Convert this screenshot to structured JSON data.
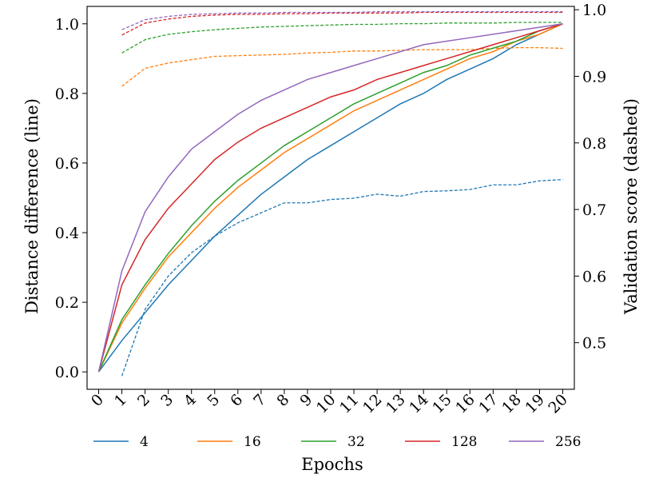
{
  "chart_data": {
    "type": "line",
    "x_label": "Epochs",
    "y_label_left": "Distance difference (line)",
    "y_label_right": "Validation score (dashed)",
    "x": [
      0,
      1,
      2,
      3,
      4,
      5,
      6,
      7,
      8,
      9,
      10,
      11,
      12,
      13,
      14,
      15,
      16,
      17,
      18,
      19,
      20
    ],
    "x_ticks": [
      "0",
      "1",
      "2",
      "3",
      "4",
      "5",
      "6",
      "7",
      "8",
      "9",
      "10",
      "11",
      "12",
      "13",
      "14",
      "15",
      "16",
      "17",
      "18",
      "19",
      "20"
    ],
    "ylim_left": [
      -0.05,
      1.05
    ],
    "yticks_left": [
      "0.0",
      "0.2",
      "0.4",
      "0.6",
      "0.8",
      "1.0"
    ],
    "ylim_right": [
      0.43,
      1.005
    ],
    "yticks_right": [
      "0.5",
      "0.6",
      "0.7",
      "0.8",
      "0.9",
      "1.0"
    ],
    "legend_position": "bottom, below plot",
    "series": [
      {
        "name": "4",
        "color": "#1f77b4",
        "distance": [
          0.0,
          0.09,
          0.17,
          0.25,
          0.32,
          0.39,
          0.45,
          0.51,
          0.56,
          0.61,
          0.65,
          0.69,
          0.73,
          0.77,
          0.8,
          0.84,
          0.87,
          0.9,
          0.94,
          0.97,
          1.0
        ],
        "validation_x": [
          1,
          2,
          3,
          4,
          5,
          6,
          7,
          8,
          9,
          10,
          11,
          12,
          13,
          14,
          15,
          16,
          17,
          18,
          19,
          20
        ],
        "validation": [
          0.45,
          0.55,
          0.6,
          0.635,
          0.66,
          0.68,
          0.695,
          0.71,
          0.71,
          0.715,
          0.717,
          0.723,
          0.72,
          0.727,
          0.728,
          0.73,
          0.737,
          0.737,
          0.743,
          0.745
        ]
      },
      {
        "name": "16",
        "color": "#ff7f0e",
        "distance": [
          0.0,
          0.14,
          0.24,
          0.33,
          0.4,
          0.47,
          0.53,
          0.58,
          0.63,
          0.67,
          0.71,
          0.75,
          0.78,
          0.81,
          0.84,
          0.87,
          0.9,
          0.92,
          0.95,
          0.97,
          1.0
        ],
        "validation_x": [
          1,
          2,
          3,
          4,
          5,
          6,
          7,
          8,
          9,
          10,
          11,
          12,
          13,
          14,
          15,
          16,
          17,
          18,
          19,
          20
        ],
        "validation": [
          0.885,
          0.912,
          0.92,
          0.925,
          0.93,
          0.931,
          0.932,
          0.933,
          0.935,
          0.936,
          0.938,
          0.938,
          0.939,
          0.94,
          0.94,
          0.94,
          0.942,
          0.943,
          0.943,
          0.942
        ]
      },
      {
        "name": "32",
        "color": "#2ca02c",
        "distance": [
          0.0,
          0.15,
          0.25,
          0.34,
          0.42,
          0.49,
          0.55,
          0.6,
          0.65,
          0.69,
          0.73,
          0.77,
          0.8,
          0.83,
          0.86,
          0.88,
          0.91,
          0.93,
          0.95,
          0.98,
          1.0
        ],
        "validation_x": [
          1,
          2,
          3,
          4,
          5,
          6,
          7,
          8,
          9,
          10,
          11,
          12,
          13,
          14,
          15,
          16,
          17,
          18,
          19,
          20
        ],
        "validation": [
          0.935,
          0.955,
          0.963,
          0.967,
          0.97,
          0.972,
          0.974,
          0.975,
          0.976,
          0.977,
          0.978,
          0.978,
          0.979,
          0.979,
          0.98,
          0.98,
          0.98,
          0.981,
          0.981,
          0.981
        ]
      },
      {
        "name": "128",
        "color": "#d62728",
        "distance": [
          0.0,
          0.25,
          0.38,
          0.47,
          0.54,
          0.61,
          0.66,
          0.7,
          0.73,
          0.76,
          0.79,
          0.81,
          0.84,
          0.86,
          0.88,
          0.9,
          0.92,
          0.94,
          0.96,
          0.98,
          1.0
        ],
        "validation_x": [
          1,
          2,
          3,
          4,
          5,
          6,
          7,
          8,
          9,
          10,
          11,
          12,
          13,
          14,
          15,
          16,
          17,
          18,
          19,
          20
        ],
        "validation": [
          0.962,
          0.98,
          0.986,
          0.99,
          0.992,
          0.993,
          0.993,
          0.994,
          0.994,
          0.995,
          0.995,
          0.995,
          0.995,
          0.996,
          0.996,
          0.996,
          0.996,
          0.996,
          0.996,
          0.996
        ]
      },
      {
        "name": "256",
        "color": "#9467bd",
        "distance": [
          0.0,
          0.29,
          0.46,
          0.56,
          0.64,
          0.69,
          0.74,
          0.78,
          0.81,
          0.84,
          0.86,
          0.88,
          0.9,
          0.92,
          0.94,
          0.95,
          0.96,
          0.97,
          0.98,
          0.99,
          1.0
        ],
        "validation_x": [
          1,
          2,
          3,
          4,
          5,
          6,
          7,
          8,
          9,
          10,
          11,
          12,
          13,
          14,
          15,
          16,
          17,
          18,
          19,
          20
        ],
        "validation": [
          0.97,
          0.985,
          0.99,
          0.993,
          0.994,
          0.995,
          0.995,
          0.996,
          0.996,
          0.996,
          0.996,
          0.997,
          0.997,
          0.997,
          0.997,
          0.997,
          0.997,
          0.997,
          0.997,
          0.997
        ]
      }
    ]
  }
}
